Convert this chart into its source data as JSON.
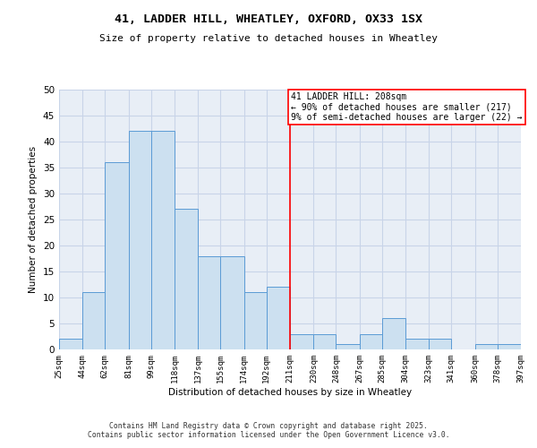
{
  "title_line1": "41, LADDER HILL, WHEATLEY, OXFORD, OX33 1SX",
  "title_line2": "Size of property relative to detached houses in Wheatley",
  "xlabel": "Distribution of detached houses by size in Wheatley",
  "ylabel": "Number of detached properties",
  "bar_edges": [
    25,
    44,
    62,
    81,
    99,
    118,
    137,
    155,
    174,
    192,
    211,
    230,
    248,
    267,
    285,
    304,
    323,
    341,
    360,
    378,
    397
  ],
  "bar_heights": [
    2,
    11,
    36,
    42,
    42,
    27,
    18,
    18,
    11,
    12,
    3,
    3,
    1,
    3,
    6,
    2,
    2,
    0,
    1,
    1
  ],
  "bar_color": "#cce0f0",
  "bar_edgecolor": "#5b9bd5",
  "grid_color": "#c8d4e8",
  "background_color": "#e8eef6",
  "vline_x": 211,
  "vline_color": "red",
  "annotation_text": "41 LADDER HILL: 208sqm\n← 90% of detached houses are smaller (217)\n9% of semi-detached houses are larger (22) →",
  "annotation_box_color": "red",
  "ylim": [
    0,
    50
  ],
  "yticks": [
    0,
    5,
    10,
    15,
    20,
    25,
    30,
    35,
    40,
    45,
    50
  ],
  "footer_text": "Contains HM Land Registry data © Crown copyright and database right 2025.\nContains public sector information licensed under the Open Government Licence v3.0.",
  "tick_labels": [
    "25sqm",
    "44sqm",
    "62sqm",
    "81sqm",
    "99sqm",
    "118sqm",
    "137sqm",
    "155sqm",
    "174sqm",
    "192sqm",
    "211sqm",
    "230sqm",
    "248sqm",
    "267sqm",
    "285sqm",
    "304sqm",
    "323sqm",
    "341sqm",
    "360sqm",
    "378sqm",
    "397sqm"
  ]
}
